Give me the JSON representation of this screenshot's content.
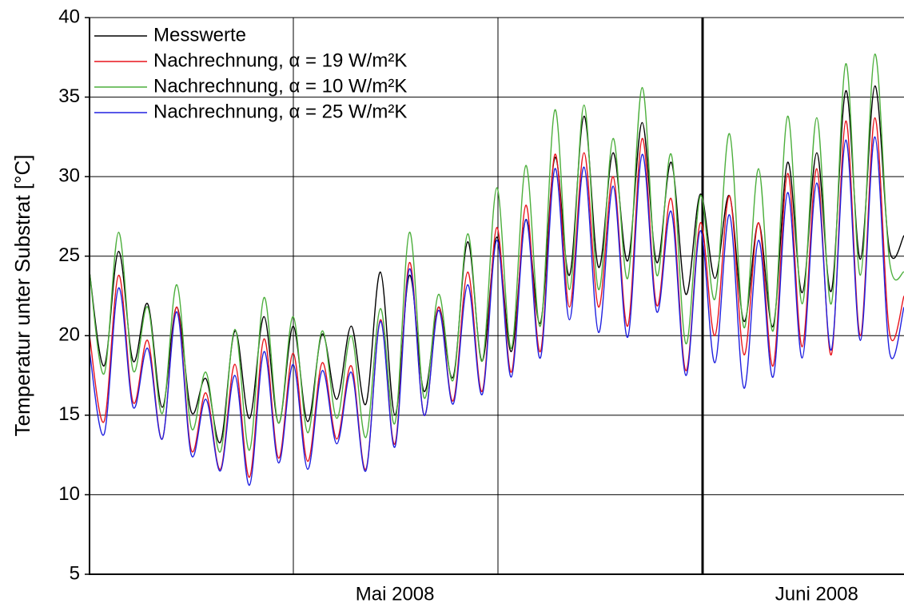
{
  "chart_data": {
    "type": "line",
    "y_label": "Temperatur unter Substrat [°C]",
    "categories": [
      null,
      null,
      null,
      null,
      null,
      null,
      null,
      null,
      null,
      null,
      null,
      null,
      null,
      null,
      null,
      null,
      null,
      null,
      null,
      null,
      null,
      "Mai 2008",
      null,
      null,
      null,
      null,
      null,
      null,
      null,
      null,
      null,
      null,
      null,
      null,
      null,
      null,
      null,
      null,
      null,
      null,
      null,
      null,
      null,
      null,
      null,
      null,
      null,
      null,
      null,
      null,
      "Juni 2008",
      null,
      null,
      null,
      null,
      null,
      null
    ],
    "series": [
      {
        "name": "Messwerte",
        "color": "#000000",
        "values": [
          24,
          18.1,
          25.3,
          18.4,
          22,
          15.5,
          21.8,
          15.2,
          17.3,
          13.3,
          20.3,
          14.8,
          21.2,
          14.5,
          20.6,
          14.6,
          20.1,
          16,
          20.6,
          15.7,
          24,
          15,
          23.8,
          16.5,
          21.8,
          17.4,
          25.9,
          18.4,
          26.2,
          19,
          27.3,
          20.8,
          31.2,
          23.8,
          33.8,
          24.3,
          31.5,
          24.7,
          33.4,
          24.6,
          30.9,
          22.6,
          28.9,
          23.6,
          28.8,
          20.9,
          27.1,
          20.6,
          30.9,
          22.7,
          31.5,
          22.8,
          35.4,
          24.8,
          35.7,
          25.4,
          26.3
        ]
      },
      {
        "name": "Nachrechnung, α = 19 W/m²K",
        "color": "#e8141c",
        "values": [
          20,
          14.6,
          23.8,
          15.8,
          19.7,
          13.5,
          21.8,
          12.8,
          16.4,
          11.6,
          18.2,
          11.1,
          19.8,
          12.3,
          18.9,
          12.1,
          18.3,
          13.5,
          18.1,
          11.6,
          21,
          13.2,
          24.6,
          15,
          21.8,
          15.9,
          24,
          16.5,
          26.8,
          17.7,
          28.2,
          19,
          31.4,
          21.8,
          31.5,
          21.8,
          30,
          20.6,
          32.4,
          21.9,
          28.6,
          17.8,
          27.1,
          20,
          28.8,
          18.8,
          27.1,
          18.1,
          30.2,
          19.3,
          30.5,
          18.8,
          33.5,
          20,
          33.7,
          20.2,
          22.5
        ]
      },
      {
        "name": "Nachrechnung, α = 10 W/m²K",
        "color": "#4caf3c",
        "values": [
          24,
          17.6,
          26.5,
          17.8,
          21.8,
          15.1,
          23.2,
          14.2,
          17.7,
          12.7,
          20.4,
          12.8,
          22.4,
          14.5,
          21.2,
          13.9,
          20.3,
          14.8,
          20,
          13.6,
          21.7,
          14.5,
          26.5,
          16.1,
          22.6,
          17.2,
          26.4,
          18.4,
          29.3,
          19.2,
          30.7,
          20.6,
          34.2,
          22.9,
          34.5,
          22.9,
          32.4,
          23.6,
          35.6,
          23.8,
          31.4,
          19.5,
          28.8,
          22.3,
          32.7,
          20.5,
          30.5,
          20.3,
          33.8,
          22,
          33.7,
          22,
          37.1,
          23.8,
          37.7,
          24.7,
          24
        ]
      },
      {
        "name": "Nachrechnung, α = 25 W/m²K",
        "color": "#2020e0",
        "values": [
          19,
          13.8,
          23,
          15.5,
          19.2,
          13.5,
          21.5,
          12.5,
          16,
          11.5,
          17.5,
          10.6,
          19,
          12,
          18.2,
          11.6,
          17.8,
          13.2,
          17.7,
          11.5,
          20.9,
          13,
          24.2,
          15,
          21.6,
          15.7,
          23.2,
          16.3,
          26,
          17.4,
          27.3,
          18.6,
          30.5,
          21,
          30.6,
          20.2,
          29.4,
          19.9,
          31.4,
          21.5,
          27.8,
          17.5,
          26.6,
          18.3,
          27.6,
          16.7,
          26,
          17.4,
          29,
          18.6,
          29.6,
          19.1,
          32.3,
          19.7,
          32.5,
          19,
          21.8
        ]
      }
    ],
    "ylim": [
      5,
      40
    ],
    "yticks": [
      5,
      10,
      15,
      20,
      25,
      30,
      35,
      40
    ],
    "grid": true,
    "legend": "upper left"
  }
}
